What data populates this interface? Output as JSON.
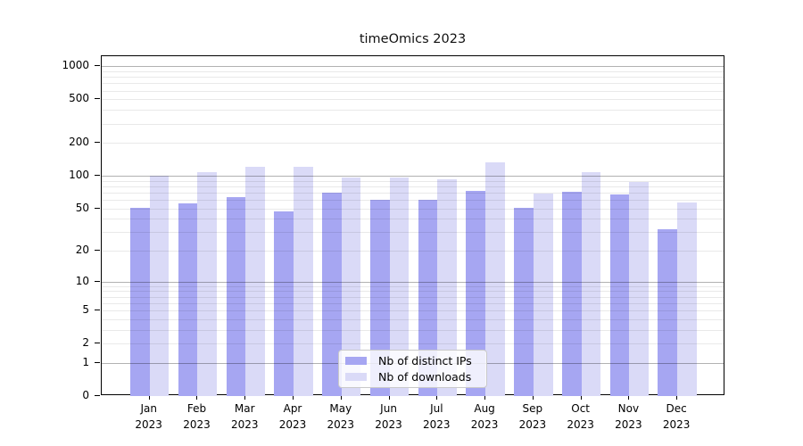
{
  "figure": {
    "title": "timeOmics 2023"
  },
  "chart_data": {
    "type": "bar",
    "title": "timeOmics 2023",
    "categories": [
      "Jan 2023",
      "Feb 2023",
      "Mar 2023",
      "Apr 2023",
      "May 2023",
      "Jun 2023",
      "Jul 2023",
      "Aug 2023",
      "Sep 2023",
      "Oct 2023",
      "Nov 2023",
      "Dec 2023"
    ],
    "series": [
      {
        "name": "Nb of distinct IPs",
        "color": "#a6a6f2",
        "values": [
          51,
          56,
          64,
          47,
          70,
          60,
          60,
          72,
          51,
          71,
          67,
          32
        ]
      },
      {
        "name": "Nb of downloads",
        "color": "#dadaf7",
        "values": [
          100,
          108,
          121,
          120,
          97,
          97,
          92,
          134,
          68,
          108,
          88,
          57
        ]
      }
    ],
    "yscale": "log1p",
    "yticks": [
      0,
      1,
      2,
      5,
      10,
      20,
      50,
      100,
      200,
      500,
      1000
    ],
    "ylim": [
      0,
      1236
    ],
    "xlabel": "",
    "ylabel": "",
    "grid": "both",
    "legend_position": "lower center",
    "colors": {
      "grid_major": "rgba(0,0,0,0.30)",
      "grid_minor": "rgba(0,0,0,0.085)",
      "axis": "#000000"
    }
  }
}
